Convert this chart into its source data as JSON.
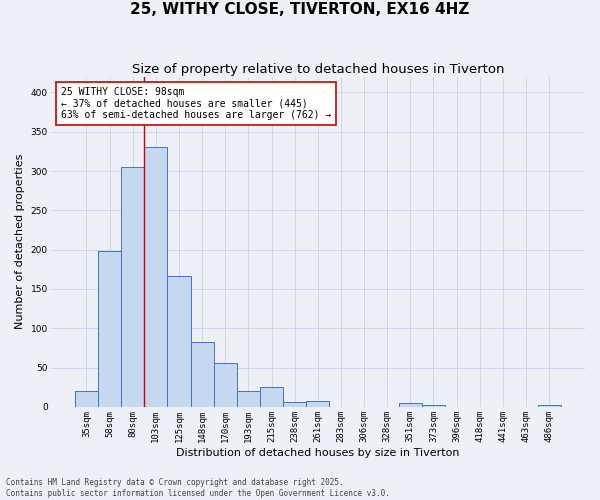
{
  "title": "25, WITHY CLOSE, TIVERTON, EX16 4HZ",
  "subtitle": "Size of property relative to detached houses in Tiverton",
  "xlabel": "Distribution of detached houses by size in Tiverton",
  "ylabel": "Number of detached properties",
  "categories": [
    "35sqm",
    "58sqm",
    "80sqm",
    "103sqm",
    "125sqm",
    "148sqm",
    "170sqm",
    "193sqm",
    "215sqm",
    "238sqm",
    "261sqm",
    "283sqm",
    "306sqm",
    "328sqm",
    "351sqm",
    "373sqm",
    "396sqm",
    "418sqm",
    "441sqm",
    "463sqm",
    "486sqm"
  ],
  "values": [
    20,
    198,
    305,
    330,
    167,
    82,
    56,
    20,
    25,
    6,
    7,
    0,
    0,
    0,
    5,
    2,
    0,
    0,
    0,
    0,
    3
  ],
  "bar_color": "#c5d8f0",
  "bar_edge_color": "#4472c4",
  "redline_x": 2.5,
  "annotation_text": "25 WITHY CLOSE: 98sqm\n← 37% of detached houses are smaller (445)\n63% of semi-detached houses are larger (762) →",
  "annotation_box_color": "#ffffff",
  "annotation_box_edge_color": "#cc0000",
  "redline_color": "#cc0000",
  "grid_color": "#c8d4e8",
  "background_color": "#edf1f7",
  "footer_text": "Contains HM Land Registry data © Crown copyright and database right 2025.\nContains public sector information licensed under the Open Government Licence v3.0.",
  "ylim": [
    0,
    420
  ],
  "yticks": [
    0,
    50,
    100,
    150,
    200,
    250,
    300,
    350,
    400
  ],
  "title_fontsize": 11,
  "subtitle_fontsize": 9.5,
  "ylabel_fontsize": 8,
  "xlabel_fontsize": 8,
  "tick_fontsize": 6.5,
  "annotation_fontsize": 7,
  "footer_fontsize": 5.5
}
